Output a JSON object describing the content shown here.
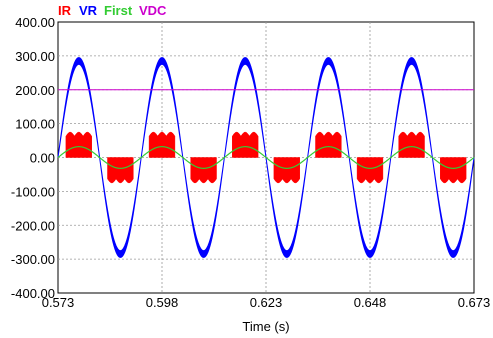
{
  "chart_data": {
    "type": "line",
    "title": "",
    "xlabel": "Time (s)",
    "ylabel": "",
    "xlim": [
      0.573,
      0.673
    ],
    "ylim": [
      -400,
      400
    ],
    "x_ticks": [
      "0.573",
      "0.598",
      "0.623",
      "0.648",
      "0.673"
    ],
    "y_ticks": [
      "400.00",
      "300.00",
      "200.00",
      "100.00",
      "0.00",
      "-100.00",
      "-200.00",
      "-300.00",
      "-400.00"
    ],
    "grid": true,
    "legend_position": "top-left",
    "frequency_hz": 50,
    "series": [
      {
        "name": "IR",
        "color": "#ff0000",
        "shape": "pulse-block",
        "amplitude": 75,
        "ripple": 12,
        "phase_deg": 0
      },
      {
        "name": "VR",
        "color": "#0000ff",
        "shape": "sine-with-ripple",
        "amplitude": 285,
        "ripple": 10,
        "phase_deg": 0
      },
      {
        "name": "First",
        "color": "#33cc33",
        "shape": "sine",
        "amplitude": 32,
        "phase_deg": 0
      },
      {
        "name": "VDC",
        "color": "#cc00cc",
        "shape": "constant",
        "value": 200
      }
    ]
  }
}
